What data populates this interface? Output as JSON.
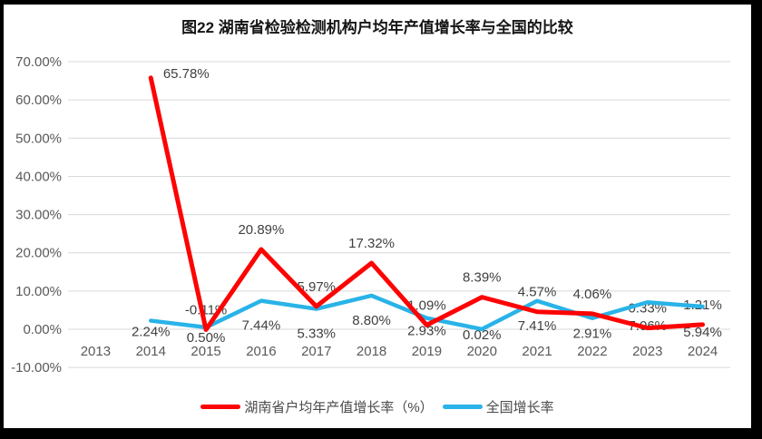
{
  "title": "图22 湖南省检验检测机构户均年产值增长率与全国的比较",
  "chart_data": {
    "type": "line",
    "categories": [
      "2013",
      "2014",
      "2015",
      "2016",
      "2017",
      "2018",
      "2019",
      "2020",
      "2021",
      "2022",
      "2023",
      "2024"
    ],
    "series": [
      {
        "name": "湖南省户均年产值增长率（%）",
        "color": "#fd0303",
        "values": [
          null,
          65.78,
          -0.11,
          20.89,
          5.97,
          17.32,
          1.09,
          8.39,
          4.57,
          4.06,
          0.33,
          1.21
        ]
      },
      {
        "name": "全国增长率",
        "color": "#29b3e8",
        "values": [
          null,
          2.24,
          0.5,
          7.44,
          5.33,
          8.8,
          2.93,
          0.02,
          7.41,
          2.91,
          7.06,
          5.94
        ]
      }
    ],
    "y_axis": {
      "min": -10,
      "max": 70,
      "step": 10,
      "tick_labels": [
        "70.00%",
        "60.00%",
        "50.00%",
        "40.00%",
        "30.00%",
        "20.00%",
        "10.00%",
        "0.00%",
        "-10.00%"
      ]
    },
    "x_axis": {
      "label_row": [
        "2013",
        "2014",
        "2015",
        "2016",
        "2017",
        "2018",
        "2019",
        "2020",
        "2021",
        "2022",
        "2023",
        "2024"
      ]
    },
    "data_label_format": "0.00%",
    "grid": true,
    "legend_position": "bottom"
  },
  "colors": {
    "grid": "#d9d9d9",
    "axis_text": "#595959",
    "data_label_text": "#3f3f3f",
    "frame": "#000000",
    "background": "#ffffff"
  }
}
